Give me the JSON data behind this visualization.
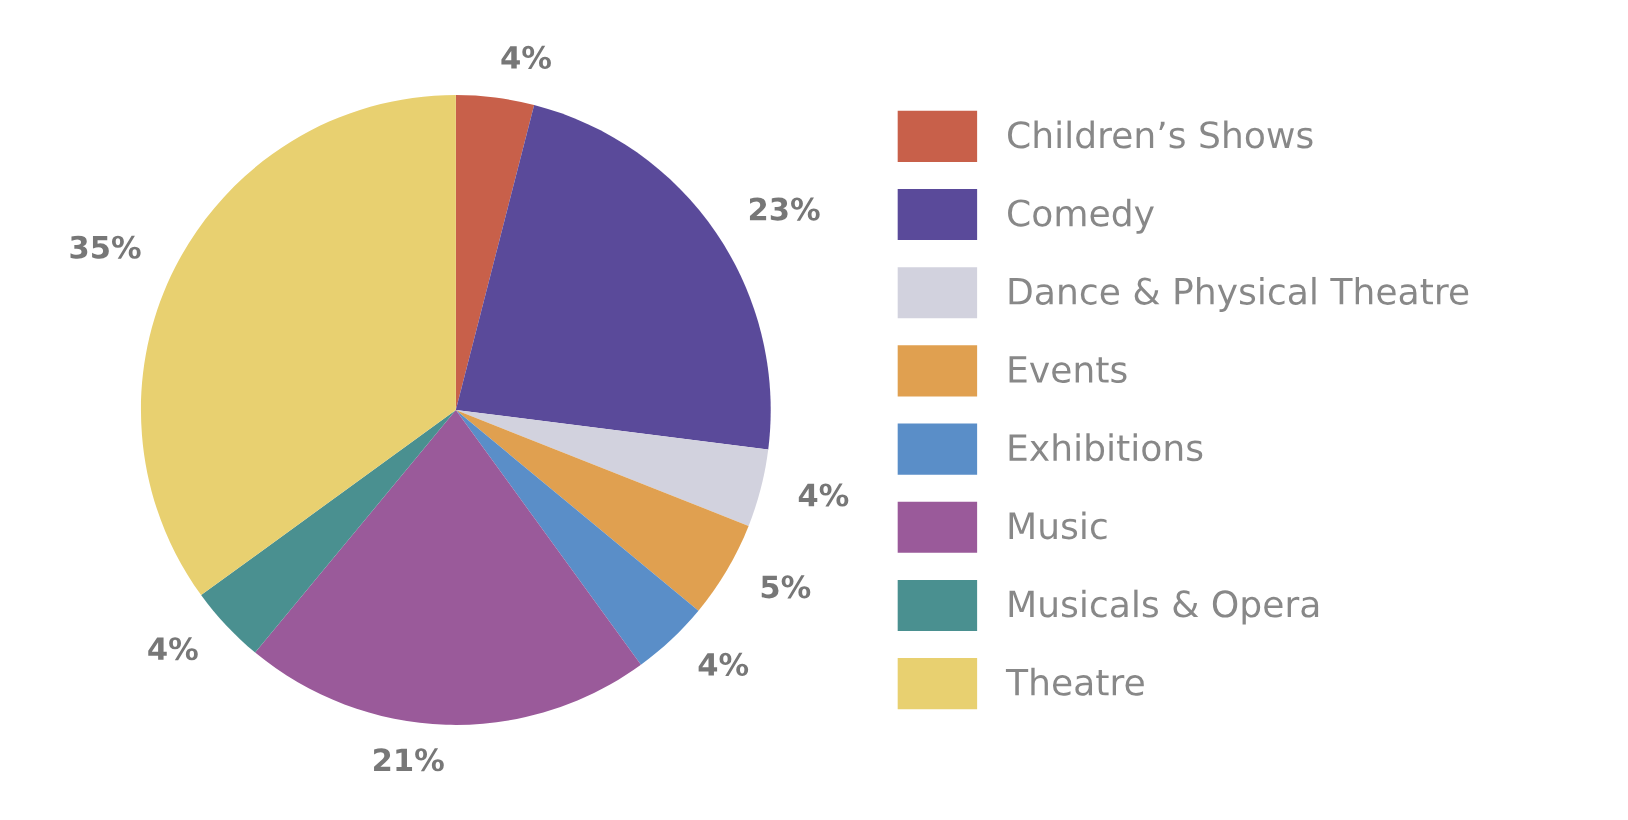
{
  "chart_data": {
    "type": "pie",
    "categories": [
      "Children’s Shows",
      "Comedy",
      "Dance & Physical Theatre",
      "Events",
      "Exhibitions",
      "Music",
      "Musicals & Opera",
      "Theatre"
    ],
    "values": [
      4,
      23,
      4,
      5,
      4,
      21,
      4,
      35
    ],
    "value_labels": [
      "4%",
      "23%",
      "4%",
      "5%",
      "4%",
      "21%",
      "4%",
      "35%"
    ],
    "colors": [
      "#c8604a",
      "#5a4a9a",
      "#d2d2de",
      "#e0a050",
      "#5a8ec8",
      "#9a5a9a",
      "#4a9090",
      "#e8d070"
    ],
    "legend": "right"
  }
}
